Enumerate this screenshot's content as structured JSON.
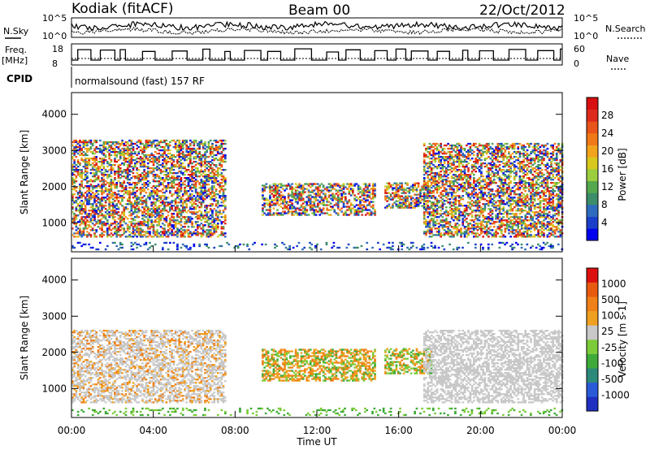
{
  "header": {
    "station": "Kodiak (fitACF)",
    "beam": "Beam 00",
    "date": "22/Oct/2012"
  },
  "top_strip": {
    "nsky_label": "N.Sky",
    "nsearch_label": "N.Search",
    "nsky_ticks": [
      "10^5",
      "10^0"
    ],
    "nsearch_ticks": [
      "10^5",
      "10^0"
    ],
    "freq_label": "Freq.",
    "freq_unit": "[MHz]",
    "freq_ticks": [
      "18",
      "8"
    ],
    "nave_label": "Nave",
    "nave_ticks": [
      "60",
      "0"
    ],
    "cpid_label": "CPID",
    "cpid_value": "normalsound (fast) 157 RF"
  },
  "chart_data": [
    {
      "type": "heatmap",
      "name": "power-panel",
      "ylabel": "Slant Range [km]",
      "ylim": [
        200,
        4600
      ],
      "yticks": [
        1000,
        2000,
        3000,
        4000
      ],
      "xlim": [
        0,
        24
      ],
      "colorbar": {
        "label": "Power [dB]",
        "range": [
          0,
          32
        ],
        "ticks": [
          "28",
          "24",
          "20",
          "16",
          "12",
          "8",
          "4"
        ],
        "colors": [
          "#0000ee",
          "#1a3fc8",
          "#2f6bbe",
          "#3c8d6a",
          "#55a84e",
          "#9ccd3c",
          "#d8c81e",
          "#f2a31c",
          "#f07a18",
          "#e8541a",
          "#dd2a1c",
          "#d80f10"
        ]
      },
      "regions": [
        {
          "t0": 0.0,
          "t1": 7.5,
          "r0": 600,
          "r1": 3300,
          "level": "mixed-high",
          "note": "strong irregular scatter"
        },
        {
          "t0": 9.3,
          "t1": 14.8,
          "r0": 1200,
          "r1": 2100,
          "level": "mixed",
          "note": "mid-day echo band"
        },
        {
          "t0": 15.3,
          "t1": 17.6,
          "r0": 1400,
          "r1": 2100,
          "level": "mixed"
        },
        {
          "t0": 17.2,
          "t1": 24.0,
          "r0": 600,
          "r1": 3200,
          "level": "mixed-high",
          "note": "evening scatter"
        },
        {
          "t0": 0.0,
          "t1": 24.0,
          "r0": 250,
          "r1": 450,
          "level": "low",
          "note": "near-range ground echoes"
        }
      ]
    },
    {
      "type": "heatmap",
      "name": "velocity-panel",
      "ylabel": "Slant Range [km]",
      "ylim": [
        200,
        4600
      ],
      "yticks": [
        1000,
        2000,
        3000,
        4000
      ],
      "xlim": [
        0,
        24
      ],
      "xticks": [
        "00:00",
        "04:00",
        "08:00",
        "12:00",
        "16:00",
        "20:00",
        "00:00"
      ],
      "xlabel": "Time UT",
      "colorbar": {
        "label": "Velocity [m s-1]",
        "ticks": [
          "1000",
          "500",
          "100",
          "25",
          "-25",
          "-100",
          "-500",
          "-1000"
        ],
        "colors": [
          "#1f2fc0",
          "#2a5ad8",
          "#2c8a7a",
          "#3faa3a",
          "#7ccc3a",
          "#c8c8c8",
          "#f0a020",
          "#f08018",
          "#e85a10",
          "#dd1010"
        ]
      },
      "regions": [
        {
          "t0": 0.0,
          "t1": 7.5,
          "r0": 600,
          "r1": 2600,
          "level": "grey-orange",
          "note": "mostly ground scatter"
        },
        {
          "t0": 9.3,
          "t1": 14.8,
          "r0": 1200,
          "r1": 2100,
          "level": "orange-green"
        },
        {
          "t0": 15.3,
          "t1": 17.6,
          "r0": 1400,
          "r1": 2100,
          "level": "green-orange"
        },
        {
          "t0": 17.2,
          "t1": 24.0,
          "r0": 600,
          "r1": 2600,
          "level": "grey",
          "note": "ground scatter"
        },
        {
          "t0": 0.0,
          "t1": 24.0,
          "r0": 250,
          "r1": 450,
          "level": "green",
          "note": "low-velocity near range"
        }
      ]
    }
  ]
}
